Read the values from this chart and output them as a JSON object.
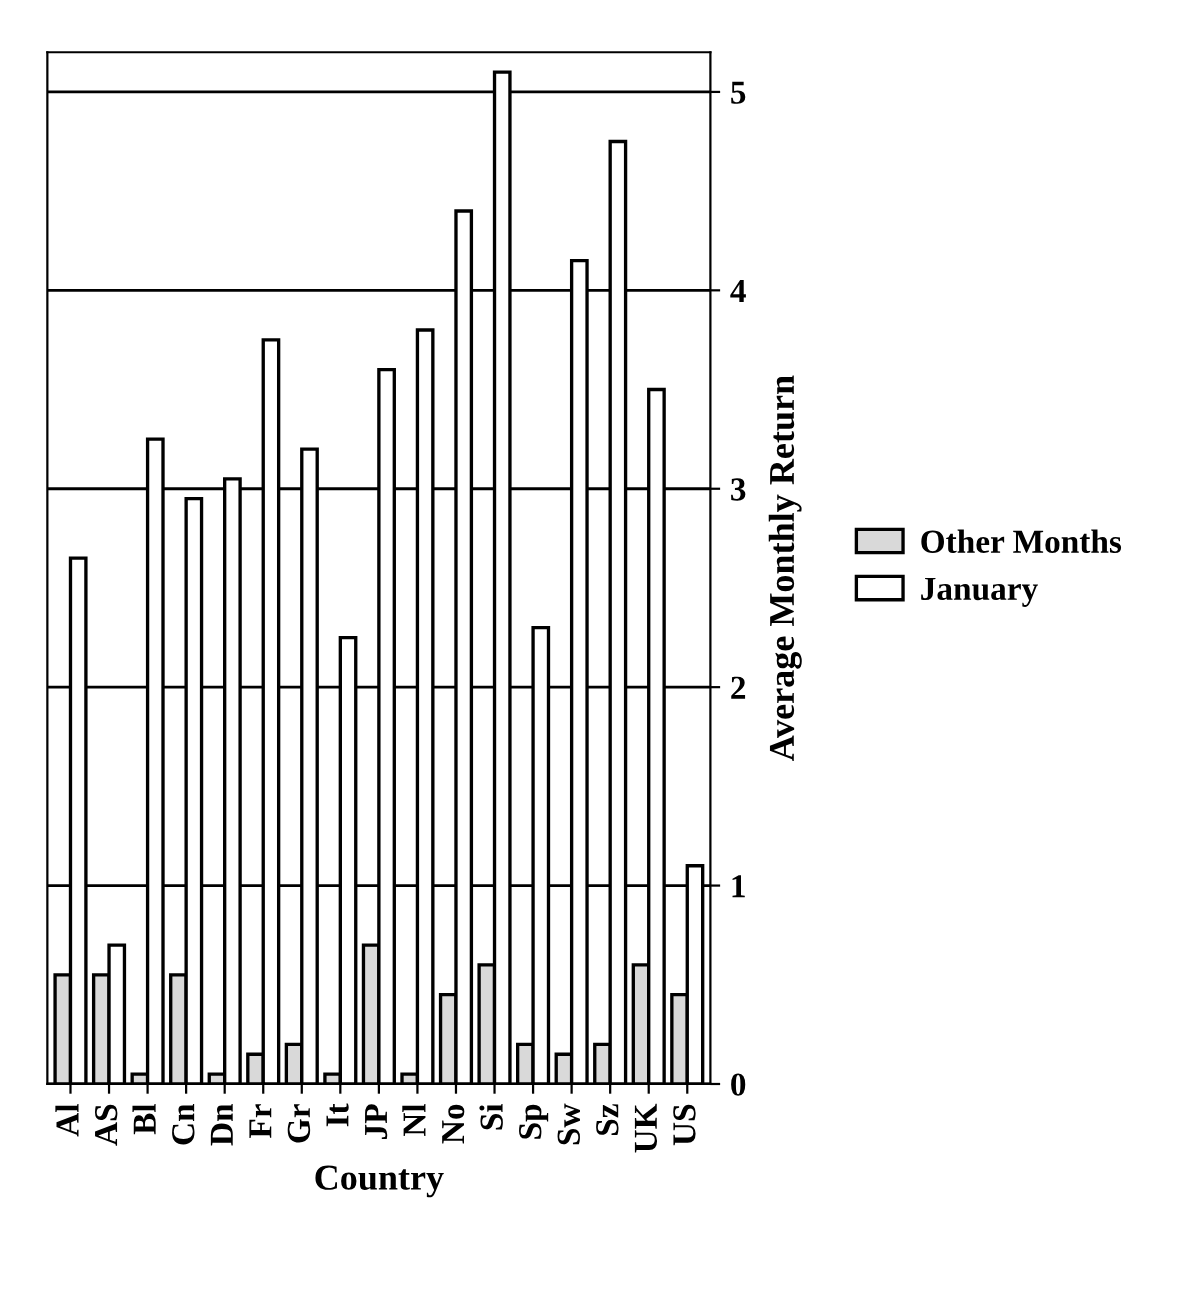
{
  "chart_data": {
    "type": "bar",
    "xlabel": "Country",
    "ylabel": "Average Monthly Return",
    "categories": [
      "Al",
      "AS",
      "Bl",
      "Cn",
      "Dn",
      "Fr",
      "Gr",
      "It",
      "JP",
      "Nl",
      "No",
      "Si",
      "Sp",
      "Sw",
      "Sz",
      "UK",
      "US"
    ],
    "series": [
      {
        "name": "Other Months",
        "color": "#d9d9d9",
        "values": [
          0.55,
          0.55,
          0.05,
          0.55,
          0.05,
          0.15,
          0.2,
          0.05,
          0.7,
          0.05,
          0.45,
          0.6,
          0.2,
          0.15,
          0.2,
          0.6,
          0.45
        ]
      },
      {
        "name": "January",
        "color": "#ffffff",
        "values": [
          2.65,
          0.7,
          3.25,
          2.95,
          3.05,
          3.75,
          3.2,
          2.25,
          3.6,
          3.8,
          4.4,
          5.1,
          2.3,
          4.15,
          4.75,
          3.5,
          1.1
        ]
      }
    ],
    "ylim": [
      0,
      5.2
    ],
    "yticks": [
      0,
      1,
      2,
      3,
      4,
      5
    ],
    "grid": "y",
    "legend": "right"
  }
}
